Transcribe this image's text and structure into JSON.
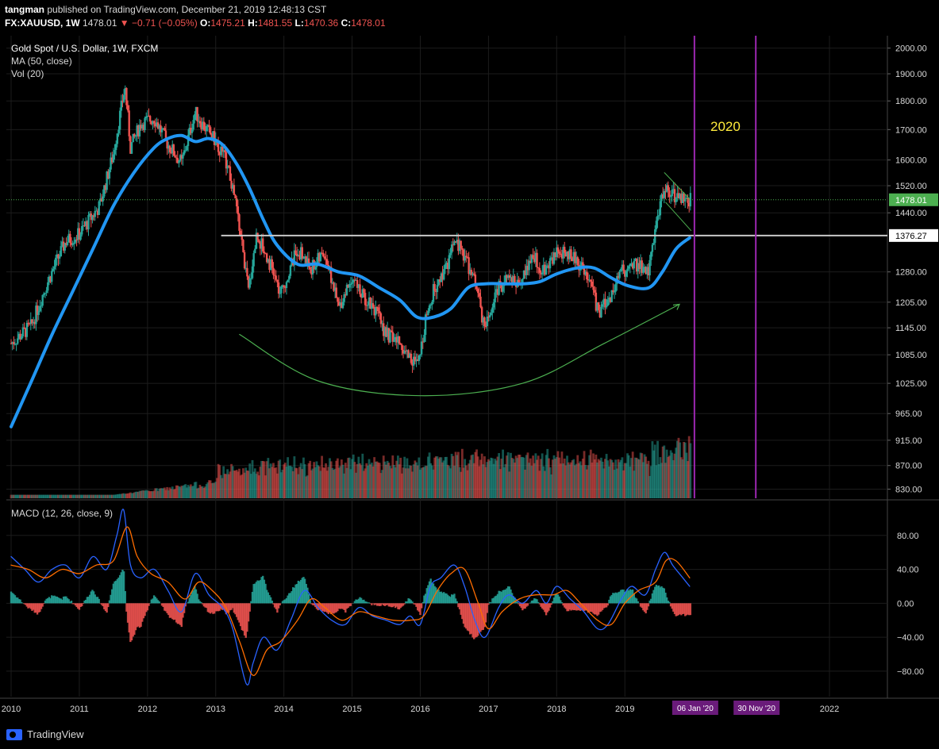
{
  "header": {
    "author": "tangman",
    "published": "published on TradingView.com, December 21, 2019 12:48:13 CST",
    "symbol": "FX:XAUUSD, 1W",
    "last": "1478.01",
    "change": "▼ −0.71 (−0.05%)",
    "open_label": "O:",
    "open": "1475.21",
    "high_label": "H:",
    "high": "1481.55",
    "low_label": "L:",
    "low": "1470.36",
    "close_label": "C:",
    "close": "1478.01"
  },
  "price_pane": {
    "title": "Gold Spot / U.S. Dollar, 1W, FXCM",
    "ma_label": "MA (50, close)",
    "vol_label": "Vol (20)",
    "annotation": "2020"
  },
  "macd_pane": {
    "title": "MACD (12, 26, close, 9)"
  },
  "footer": {
    "brand": "TradingView"
  },
  "colors": {
    "up": "#26a69a",
    "down": "#ef5350",
    "ma": "#2196f3",
    "macd": "#2962ff",
    "signal": "#ff6d00",
    "vline": "#9c27b0",
    "arc": "#4caf50",
    "level": "#c8c8c8",
    "last_price": "#4caf50"
  },
  "chart_data": [
    {
      "type": "line",
      "name": "price",
      "y_axis_ticks": [
        2000,
        1900,
        1800,
        1700,
        1600,
        1520,
        1440,
        1280,
        1205,
        1145,
        1085,
        1025,
        965,
        915,
        870,
        830
      ],
      "y_axis_labels": [
        "2000.00",
        "1900.00",
        "1800.00",
        "1700.00",
        "1600.00",
        "1520.00",
        "1440.00",
        "1280.00",
        "1205.00",
        "1145.00",
        "1085.00",
        "1025.00",
        "965.00",
        "915.00",
        "870.00",
        "830.00"
      ],
      "ylim": [
        815,
        2050
      ],
      "x_axis_labels": [
        "2010",
        "2011",
        "2012",
        "2013",
        "2014",
        "2015",
        "2016",
        "2017",
        "2018",
        "2019",
        "2022"
      ],
      "x_marker_labels": [
        "06 Jan '20",
        "30 Nov '20"
      ],
      "last_price_label": "1478.01",
      "level_label": "1376.27",
      "level": 1376.27,
      "price_path": [
        [
          2010.0,
          1110
        ],
        [
          2010.3,
          1150
        ],
        [
          2010.5,
          1240
        ],
        [
          2010.8,
          1360
        ],
        [
          2011.0,
          1380
        ],
        [
          2011.3,
          1460
        ],
        [
          2011.5,
          1620
        ],
        [
          2011.67,
          1850
        ],
        [
          2011.75,
          1640
        ],
        [
          2011.9,
          1720
        ],
        [
          2012.1,
          1740
        ],
        [
          2012.3,
          1650
        ],
        [
          2012.5,
          1590
        ],
        [
          2012.7,
          1760
        ],
        [
          2012.8,
          1720
        ],
        [
          2013.0,
          1660
        ],
        [
          2013.15,
          1600
        ],
        [
          2013.3,
          1460
        ],
        [
          2013.48,
          1230
        ],
        [
          2013.6,
          1380
        ],
        [
          2013.8,
          1300
        ],
        [
          2013.95,
          1220
        ],
        [
          2014.2,
          1340
        ],
        [
          2014.4,
          1290
        ],
        [
          2014.6,
          1330
        ],
        [
          2014.8,
          1190
        ],
        [
          2015.0,
          1270
        ],
        [
          2015.15,
          1220
        ],
        [
          2015.3,
          1200
        ],
        [
          2015.5,
          1130
        ],
        [
          2015.7,
          1110
        ],
        [
          2015.85,
          1080
        ],
        [
          2015.97,
          1060
        ],
        [
          2016.1,
          1180
        ],
        [
          2016.2,
          1240
        ],
        [
          2016.4,
          1290
        ],
        [
          2016.5,
          1360
        ],
        [
          2016.6,
          1340
        ],
        [
          2016.8,
          1250
        ],
        [
          2016.95,
          1140
        ],
        [
          2017.1,
          1230
        ],
        [
          2017.3,
          1270
        ],
        [
          2017.45,
          1250
        ],
        [
          2017.65,
          1330
        ],
        [
          2017.8,
          1280
        ],
        [
          2018.0,
          1330
        ],
        [
          2018.15,
          1335
        ],
        [
          2018.3,
          1310
        ],
        [
          2018.5,
          1240
        ],
        [
          2018.62,
          1180
        ],
        [
          2018.8,
          1220
        ],
        [
          2018.95,
          1280
        ],
        [
          2019.1,
          1300
        ],
        [
          2019.2,
          1300
        ],
        [
          2019.35,
          1280
        ],
        [
          2019.45,
          1400
        ],
        [
          2019.58,
          1520
        ],
        [
          2019.68,
          1500
        ],
        [
          2019.8,
          1480
        ],
        [
          2019.95,
          1478
        ]
      ],
      "ma_path": [
        [
          2010.0,
          940
        ],
        [
          2010.3,
          1030
        ],
        [
          2010.6,
          1130
        ],
        [
          2010.9,
          1230
        ],
        [
          2011.2,
          1340
        ],
        [
          2011.5,
          1460
        ],
        [
          2011.8,
          1560
        ],
        [
          2012.1,
          1640
        ],
        [
          2012.3,
          1670
        ],
        [
          2012.5,
          1680
        ],
        [
          2012.7,
          1660
        ],
        [
          2012.9,
          1670
        ],
        [
          2013.1,
          1650
        ],
        [
          2013.3,
          1590
        ],
        [
          2013.5,
          1510
        ],
        [
          2013.7,
          1420
        ],
        [
          2013.9,
          1350
        ],
        [
          2014.2,
          1300
        ],
        [
          2014.5,
          1300
        ],
        [
          2014.8,
          1280
        ],
        [
          2015.1,
          1270
        ],
        [
          2015.4,
          1240
        ],
        [
          2015.7,
          1210
        ],
        [
          2015.95,
          1170
        ],
        [
          2016.2,
          1170
        ],
        [
          2016.45,
          1190
        ],
        [
          2016.7,
          1240
        ],
        [
          2016.95,
          1250
        ],
        [
          2017.25,
          1250
        ],
        [
          2017.5,
          1250
        ],
        [
          2017.75,
          1255
        ],
        [
          2018.0,
          1275
        ],
        [
          2018.3,
          1290
        ],
        [
          2018.55,
          1290
        ],
        [
          2018.8,
          1265
        ],
        [
          2019.05,
          1245
        ],
        [
          2019.35,
          1240
        ],
        [
          2019.55,
          1280
        ],
        [
          2019.75,
          1340
        ],
        [
          2019.95,
          1370
        ]
      ],
      "arc_path": [
        [
          2013.35,
          1130
        ],
        [
          2014.5,
          1030
        ],
        [
          2016.0,
          1000
        ],
        [
          2017.5,
          1025
        ],
        [
          2018.7,
          1110
        ],
        [
          2019.8,
          1200
        ]
      ],
      "wedge_upper": [
        [
          2019.58,
          1560
        ],
        [
          2019.95,
          1480
        ]
      ],
      "wedge_lower": [
        [
          2019.6,
          1470
        ],
        [
          2019.97,
          1390
        ]
      ]
    },
    {
      "type": "line",
      "name": "macd",
      "y_axis_ticks": [
        80,
        40,
        0,
        -40,
        -80
      ],
      "y_axis_labels": [
        "80.00",
        "40.00",
        "0.00",
        "−40.00",
        "−80.00"
      ],
      "ylim": [
        -110,
        120
      ],
      "macd_path": [
        [
          2010.0,
          55
        ],
        [
          2010.2,
          40
        ],
        [
          2010.4,
          25
        ],
        [
          2010.6,
          40
        ],
        [
          2010.8,
          45
        ],
        [
          2011.0,
          30
        ],
        [
          2011.2,
          55
        ],
        [
          2011.4,
          40
        ],
        [
          2011.55,
          80
        ],
        [
          2011.65,
          110
        ],
        [
          2011.75,
          45
        ],
        [
          2011.9,
          30
        ],
        [
          2012.1,
          40
        ],
        [
          2012.3,
          15
        ],
        [
          2012.5,
          -10
        ],
        [
          2012.7,
          35
        ],
        [
          2012.9,
          10
        ],
        [
          2013.1,
          -5
        ],
        [
          2013.25,
          -30
        ],
        [
          2013.45,
          -95
        ],
        [
          2013.55,
          -70
        ],
        [
          2013.7,
          -40
        ],
        [
          2013.9,
          -55
        ],
        [
          2014.1,
          -20
        ],
        [
          2014.3,
          15
        ],
        [
          2014.5,
          -5
        ],
        [
          2014.7,
          -20
        ],
        [
          2014.9,
          -25
        ],
        [
          2015.1,
          -5
        ],
        [
          2015.3,
          -15
        ],
        [
          2015.5,
          -20
        ],
        [
          2015.7,
          -25
        ],
        [
          2015.85,
          -15
        ],
        [
          2016.0,
          -25
        ],
        [
          2016.15,
          20
        ],
        [
          2016.3,
          30
        ],
        [
          2016.5,
          45
        ],
        [
          2016.65,
          20
        ],
        [
          2016.8,
          -20
        ],
        [
          2016.95,
          -40
        ],
        [
          2017.15,
          -5
        ],
        [
          2017.3,
          10
        ],
        [
          2017.5,
          0
        ],
        [
          2017.7,
          15
        ],
        [
          2017.85,
          0
        ],
        [
          2018.0,
          20
        ],
        [
          2018.2,
          5
        ],
        [
          2018.4,
          -10
        ],
        [
          2018.6,
          -30
        ],
        [
          2018.75,
          -25
        ],
        [
          2018.95,
          5
        ],
        [
          2019.1,
          20
        ],
        [
          2019.3,
          10
        ],
        [
          2019.45,
          40
        ],
        [
          2019.58,
          60
        ],
        [
          2019.7,
          45
        ],
        [
          2019.85,
          30
        ],
        [
          2019.95,
          20
        ]
      ],
      "signal_path": [
        [
          2010.0,
          45
        ],
        [
          2010.25,
          40
        ],
        [
          2010.5,
          30
        ],
        [
          2010.75,
          40
        ],
        [
          2011.0,
          35
        ],
        [
          2011.25,
          45
        ],
        [
          2011.5,
          50
        ],
        [
          2011.7,
          90
        ],
        [
          2011.85,
          55
        ],
        [
          2012.05,
          35
        ],
        [
          2012.3,
          25
        ],
        [
          2012.55,
          5
        ],
        [
          2012.75,
          25
        ],
        [
          2012.95,
          15
        ],
        [
          2013.15,
          -5
        ],
        [
          2013.35,
          -45
        ],
        [
          2013.55,
          -85
        ],
        [
          2013.75,
          -55
        ],
        [
          2013.95,
          -45
        ],
        [
          2014.2,
          -20
        ],
        [
          2014.4,
          5
        ],
        [
          2014.6,
          -5
        ],
        [
          2014.85,
          -20
        ],
        [
          2015.1,
          -10
        ],
        [
          2015.35,
          -15
        ],
        [
          2015.6,
          -20
        ],
        [
          2015.85,
          -20
        ],
        [
          2016.05,
          -15
        ],
        [
          2016.25,
          15
        ],
        [
          2016.45,
          35
        ],
        [
          2016.65,
          40
        ],
        [
          2016.85,
          0
        ],
        [
          2017.0,
          -30
        ],
        [
          2017.2,
          -10
        ],
        [
          2017.45,
          5
        ],
        [
          2017.7,
          10
        ],
        [
          2017.95,
          10
        ],
        [
          2018.15,
          15
        ],
        [
          2018.35,
          0
        ],
        [
          2018.6,
          -20
        ],
        [
          2018.8,
          -25
        ],
        [
          2019.0,
          0
        ],
        [
          2019.2,
          15
        ],
        [
          2019.45,
          25
        ],
        [
          2019.6,
          50
        ],
        [
          2019.75,
          50
        ],
        [
          2019.95,
          30
        ]
      ]
    }
  ]
}
